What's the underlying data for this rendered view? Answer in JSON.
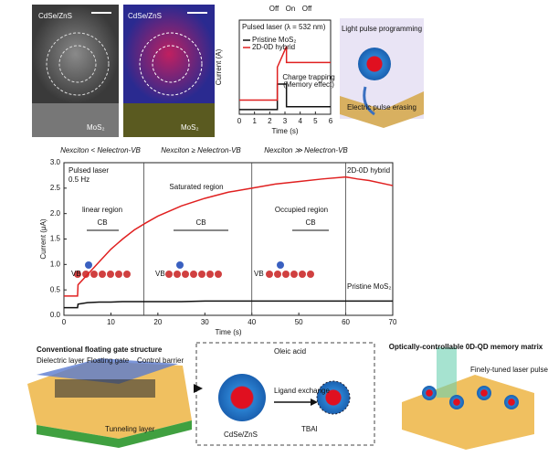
{
  "panels": {
    "images": {
      "left_top": "CdSe/ZnS",
      "left_bottom": "MoS₂",
      "right_top": "CdSe/ZnS",
      "right_bottom": "MoS₂"
    },
    "schematic_top": {
      "program": "Light pulse programming",
      "erase": "Electric pulse erasing"
    },
    "bottom": {
      "left_title": "Conventional floating gate structure",
      "dielectric": "Dielectric layer",
      "floating": "Floating gate",
      "control": "Control barrier",
      "tunneling": "Tunneling layer",
      "oleic": "Oleic acid",
      "ligand": "Ligand exchange",
      "tbai": "TBAI",
      "qd": "CdSe/ZnS",
      "right_title": "Optically-controllable 0D-QD memory matrix",
      "laser": "Finely-tuned laser pulses"
    }
  },
  "chart_data": [
    {
      "type": "line",
      "xlabel": "Time (s)",
      "ylabel": "Current (μA)",
      "x": [
        0,
        2.9,
        3,
        5,
        7.5,
        10,
        12.5,
        15,
        17.5,
        20,
        25,
        30,
        35,
        40,
        45,
        50,
        55,
        60,
        62.5,
        65,
        70
      ],
      "series": [
        {
          "name": "2D-0D hybrid",
          "color": "#e02020",
          "values": [
            0.38,
            0.38,
            0.6,
            0.8,
            1.05,
            1.3,
            1.5,
            1.68,
            1.82,
            1.95,
            2.15,
            2.3,
            2.42,
            2.5,
            2.58,
            2.63,
            2.68,
            2.72,
            2.68,
            2.65,
            2.55
          ]
        },
        {
          "name": "Pristine MoS₂",
          "color": "#111111",
          "values": [
            0.15,
            0.15,
            0.22,
            0.25,
            0.26,
            0.26,
            0.27,
            0.27,
            0.27,
            0.27,
            0.27,
            0.28,
            0.28,
            0.28,
            0.28,
            0.28,
            0.28,
            0.28,
            0.28,
            0.28,
            0.28
          ]
        }
      ],
      "xlim": [
        0,
        70
      ],
      "xticks": [
        0,
        10,
        20,
        30,
        40,
        50,
        60,
        70
      ],
      "ylim": [
        0,
        3.0
      ],
      "yticks": [
        {
          "value": 0,
          "label": "0.0"
        },
        0.5,
        {
          "value": 1,
          "label": "1.0"
        },
        1.5,
        {
          "value": 2,
          "label": "2.0"
        },
        2.5,
        {
          "value": 3,
          "label": "3.0"
        }
      ],
      "region_bounds": [
        17,
        40,
        60
      ],
      "annotations": [
        "Nexciton < Nelectron-VB",
        "Nexciton ≥ Nelectron-VB",
        "Nexciton ≫ Nelectron-VB",
        "Pulsed laser",
        "0.5 Hz",
        "linear region",
        "Saturated region",
        "Occupied region",
        "CB",
        "CB",
        "CB",
        "VB",
        "VB",
        "VB"
      ]
    },
    {
      "type": "line",
      "xlabel": "Time (s)",
      "ylabel": "Current (A)",
      "x": [
        0,
        2.5,
        2.5,
        3.1,
        3.1,
        6
      ],
      "series": [
        {
          "name": "Pristine MoS₂",
          "color": "#111111",
          "values": [
            0.05,
            0.05,
            0.32,
            0.32,
            0.08,
            0.08
          ]
        },
        {
          "name": "2D-0D hybrid",
          "color": "#e02020",
          "values": [
            0.15,
            0.15,
            0.5,
            0.72,
            0.55,
            0.55
          ]
        }
      ],
      "xlim": [
        0,
        6
      ],
      "xticks": [
        0,
        1,
        2,
        3,
        4,
        5,
        6
      ],
      "ylim": [
        0,
        1
      ],
      "annotations": [
        "Off",
        "On",
        "Off",
        "Pulsed laser (λ = 532 nm)",
        "Charge trapping",
        "(Memory effect)"
      ]
    }
  ]
}
